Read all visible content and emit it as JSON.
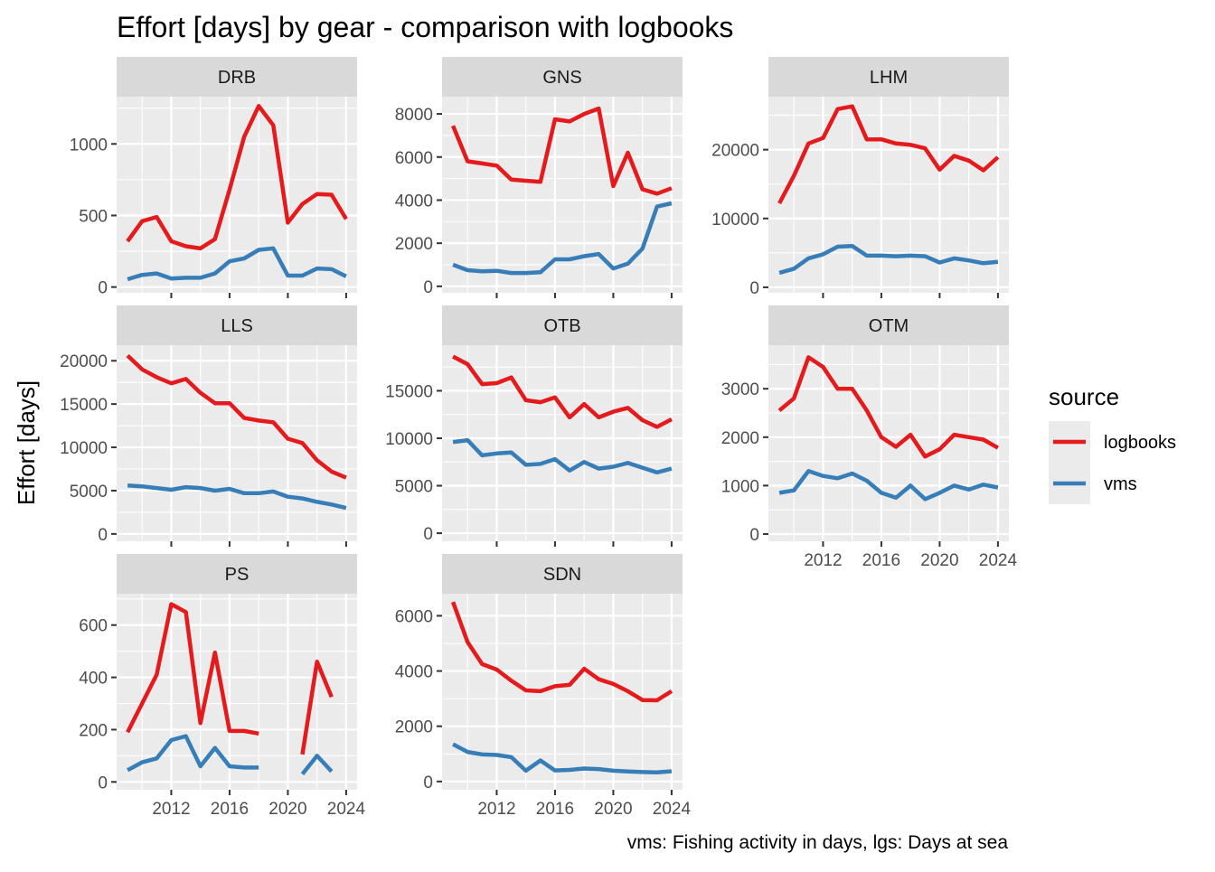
{
  "chart_data": {
    "type": "line",
    "title": "Effort [days] by gear - comparison with logbooks",
    "ylabel": "Effort [days]",
    "xlabel": "",
    "caption": "vms: Fishing activity in days, lgs: Days at sea",
    "x_ticks": [
      "2012",
      "2016",
      "2020",
      "2024"
    ],
    "grid": true,
    "legend": {
      "title": "source",
      "position": "right",
      "entries": [
        {
          "name": "logbooks",
          "color": "#E41A1C"
        },
        {
          "name": "vms",
          "color": "#377EB8"
        }
      ]
    },
    "x": [
      2009,
      2010,
      2011,
      2012,
      2013,
      2014,
      2015,
      2016,
      2017,
      2018,
      2019,
      2020,
      2021,
      2022,
      2023,
      2024
    ],
    "panels": [
      {
        "name": "DRB",
        "ylim": [
          -40,
          1330
        ],
        "y_ticks": [
          "0",
          "500",
          "1000"
        ],
        "series": [
          {
            "name": "logbooks",
            "values": [
              320,
              460,
              490,
              320,
              285,
              270,
              335,
              680,
              1050,
              1265,
              1130,
              450,
              580,
              650,
              645,
              475
            ]
          },
          {
            "name": "vms",
            "values": [
              55,
              85,
              95,
              60,
              65,
              65,
              95,
              180,
              200,
              260,
              270,
              80,
              80,
              130,
              125,
              75
            ]
          }
        ]
      },
      {
        "name": "GNS",
        "ylim": [
          -300,
          8800
        ],
        "y_ticks": [
          "0",
          "2000",
          "4000",
          "6000",
          "8000"
        ],
        "series": [
          {
            "name": "logbooks",
            "values": [
              7450,
              5800,
              5700,
              5600,
              4950,
              4900,
              4850,
              7750,
              7650,
              8000,
              8250,
              4650,
              6200,
              4500,
              4300,
              4550
            ]
          },
          {
            "name": "vms",
            "values": [
              1000,
              750,
              700,
              720,
              620,
              620,
              650,
              1250,
              1250,
              1400,
              1500,
              830,
              1050,
              1750,
              3700,
              3850
            ]
          }
        ]
      },
      {
        "name": "LHM",
        "ylim": [
          -800,
          27700
        ],
        "y_ticks": [
          "0",
          "10000",
          "20000"
        ],
        "series": [
          {
            "name": "logbooks",
            "values": [
              12200,
              16200,
              20900,
              21700,
              25900,
              26300,
              21500,
              21500,
              20900,
              20700,
              20200,
              17100,
              19100,
              18400,
              17000,
              18900
            ]
          },
          {
            "name": "vms",
            "values": [
              2100,
              2700,
              4200,
              4800,
              5900,
              6000,
              4600,
              4600,
              4500,
              4600,
              4500,
              3600,
              4200,
              3900,
              3500,
              3700
            ]
          }
        ]
      },
      {
        "name": "LLS",
        "ylim": [
          -850,
          21800
        ],
        "y_ticks": [
          "0",
          "5000",
          "10000",
          "15000",
          "20000"
        ],
        "series": [
          {
            "name": "logbooks",
            "values": [
              20600,
              19000,
              18100,
              17400,
              17900,
              16300,
              15100,
              15100,
              13400,
              13100,
              12900,
              11000,
              10500,
              8500,
              7200,
              6500
            ]
          },
          {
            "name": "vms",
            "values": [
              5600,
              5500,
              5300,
              5100,
              5400,
              5300,
              5000,
              5200,
              4700,
              4700,
              4900,
              4300,
              4100,
              3700,
              3400,
              3000
            ]
          }
        ]
      },
      {
        "name": "OTB",
        "ylim": [
          -850,
          19800
        ],
        "y_ticks": [
          "0",
          "5000",
          "10000",
          "15000"
        ],
        "series": [
          {
            "name": "logbooks",
            "values": [
              18600,
              17800,
              15700,
              15800,
              16400,
              14000,
              13800,
              14300,
              12200,
              13600,
              12200,
              12800,
              13200,
              11900,
              11200,
              12000
            ]
          },
          {
            "name": "vms",
            "values": [
              9600,
              9800,
              8200,
              8400,
              8500,
              7200,
              7300,
              7800,
              6600,
              7500,
              6800,
              7000,
              7400,
              6900,
              6400,
              6800
            ]
          }
        ]
      },
      {
        "name": "OTM",
        "ylim": [
          -150,
          3900
        ],
        "y_ticks": [
          "0",
          "1000",
          "2000",
          "3000"
        ],
        "series": [
          {
            "name": "logbooks",
            "values": [
              2550,
              2800,
              3650,
              3450,
              3000,
              3000,
              2550,
              2000,
              1800,
              2050,
              1600,
              1750,
              2050,
              2000,
              1950,
              1780
            ]
          },
          {
            "name": "vms",
            "values": [
              850,
              900,
              1300,
              1200,
              1150,
              1250,
              1100,
              850,
              750,
              1000,
              720,
              850,
              1000,
              920,
              1020,
              960
            ]
          }
        ]
      },
      {
        "name": "PS",
        "ylim": [
          -30,
          720
        ],
        "y_ticks": [
          "0",
          "200",
          "400",
          "600"
        ],
        "series": [
          {
            "name": "logbooks",
            "values": [
              190,
              300,
              410,
              680,
              650,
              225,
              495,
              195,
              195,
              185,
              null,
              null,
              105,
              460,
              325,
              null
            ]
          },
          {
            "name": "vms",
            "values": [
              45,
              75,
              90,
              160,
              175,
              60,
              130,
              60,
              55,
              55,
              null,
              null,
              30,
              100,
              40,
              null
            ]
          }
        ]
      },
      {
        "name": "SDN",
        "ylim": [
          -300,
          6800
        ],
        "y_ticks": [
          "0",
          "2000",
          "4000",
          "6000"
        ],
        "series": [
          {
            "name": "logbooks",
            "values": [
              6500,
              5050,
              4250,
              4050,
              3650,
              3300,
              3270,
              3450,
              3500,
              4080,
              3700,
              3530,
              3270,
              2950,
              2940,
              3270
            ]
          },
          {
            "name": "vms",
            "values": [
              1350,
              1070,
              980,
              960,
              880,
              390,
              760,
              400,
              420,
              470,
              450,
              390,
              360,
              340,
              330,
              370
            ]
          }
        ]
      }
    ]
  }
}
